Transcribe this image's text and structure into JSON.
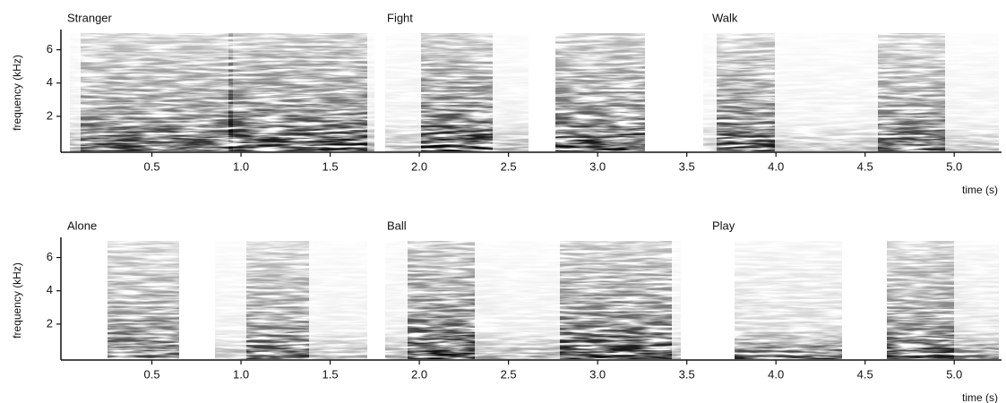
{
  "chart_data": [
    {
      "type": "spectrogram",
      "labels": [
        "Stranger",
        "Fight",
        "Walk"
      ],
      "xlabel": "time (s)",
      "ylabel": "frequency (kHz)",
      "xlim": [
        0,
        5.25
      ],
      "ylim": [
        0,
        7
      ],
      "xticks": [
        0.5,
        {
          "value": 1,
          "label": "1.0"
        },
        1.5,
        {
          "value": 2,
          "label": "2.0"
        },
        2.5,
        {
          "value": 3,
          "label": "3.0"
        },
        3.5,
        {
          "value": 4,
          "label": "4.0"
        },
        4.5,
        {
          "value": 5,
          "label": "5.0"
        }
      ],
      "yticks": [
        2,
        4,
        6
      ]
    },
    {
      "type": "spectrogram",
      "labels": [
        "Alone",
        "Ball",
        "Play"
      ],
      "xlabel": "time (s)",
      "ylabel": "frequency (kHz)",
      "xlim": [
        0,
        5.25
      ],
      "ylim": [
        0,
        7
      ],
      "xticks": [
        0.5,
        {
          "value": 1,
          "label": "1.0"
        },
        1.5,
        {
          "value": 2,
          "label": "2.0"
        },
        2.5,
        {
          "value": 3,
          "label": "3.0"
        },
        3.5,
        {
          "value": 4,
          "label": "4.0"
        },
        4.5,
        {
          "value": 5,
          "label": "5.0"
        }
      ],
      "yticks": [
        2,
        4,
        6
      ]
    }
  ]
}
